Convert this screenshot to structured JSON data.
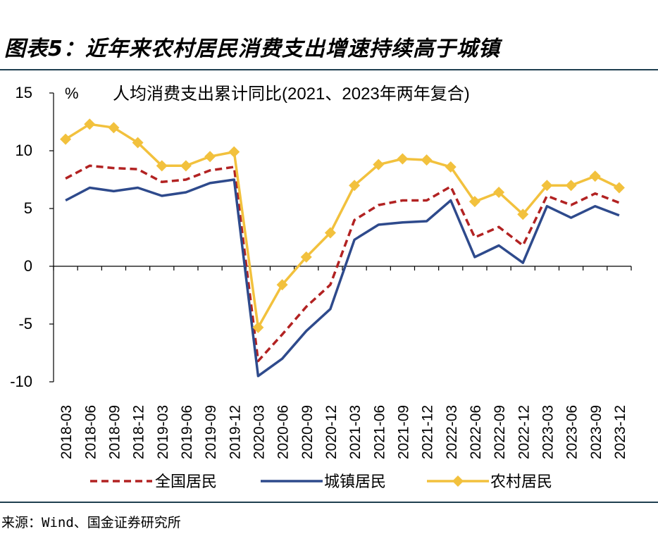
{
  "figure_title": "图表5：近年来农村居民消费支出增速持续高于城镇",
  "source": "来源：Wind、国金证券研究所",
  "chart_data": {
    "type": "line",
    "title": "人均消费支出累计同比(2021、2023年两年复合)",
    "ylabel": "%",
    "xlabel": "",
    "ylim": [
      -10,
      15
    ],
    "yticks": [
      -10,
      -5,
      0,
      5,
      10,
      15
    ],
    "legend_position": "bottom",
    "grid": false,
    "categories": [
      "2018-03",
      "2018-06",
      "2018-09",
      "2018-12",
      "2019-03",
      "2019-06",
      "2019-09",
      "2019-12",
      "2020-03",
      "2020-06",
      "2020-09",
      "2020-12",
      "2021-03",
      "2021-06",
      "2021-09",
      "2021-12",
      "2022-03",
      "2022-06",
      "2022-09",
      "2022-12",
      "2023-03",
      "2023-06",
      "2023-09",
      "2023-12"
    ],
    "series": [
      {
        "name": "全国居民",
        "color": "#b22222",
        "style": "dashed",
        "values": [
          7.6,
          8.7,
          8.5,
          8.4,
          7.3,
          7.5,
          8.3,
          8.6,
          -8.2,
          -5.9,
          -3.5,
          -1.6,
          4.0,
          5.3,
          5.7,
          5.7,
          6.9,
          2.5,
          3.4,
          1.8,
          6.1,
          5.3,
          6.3,
          5.5
        ]
      },
      {
        "name": "城镇居民",
        "color": "#2e4a8c",
        "style": "solid",
        "values": [
          5.7,
          6.8,
          6.5,
          6.8,
          6.1,
          6.4,
          7.2,
          7.5,
          -9.5,
          -8.0,
          -5.6,
          -3.7,
          2.3,
          3.6,
          3.8,
          3.9,
          5.7,
          0.8,
          1.8,
          0.3,
          5.2,
          4.2,
          5.2,
          4.4
        ]
      },
      {
        "name": "农村居民",
        "color": "#f2c13d",
        "style": "solid-diamond",
        "values": [
          11.0,
          12.3,
          12.0,
          10.7,
          8.7,
          8.7,
          9.5,
          9.9,
          -5.3,
          -1.6,
          0.8,
          2.9,
          7.0,
          8.8,
          9.3,
          9.2,
          8.6,
          5.6,
          6.4,
          4.5,
          7.0,
          7.0,
          7.8,
          6.8
        ]
      }
    ]
  }
}
